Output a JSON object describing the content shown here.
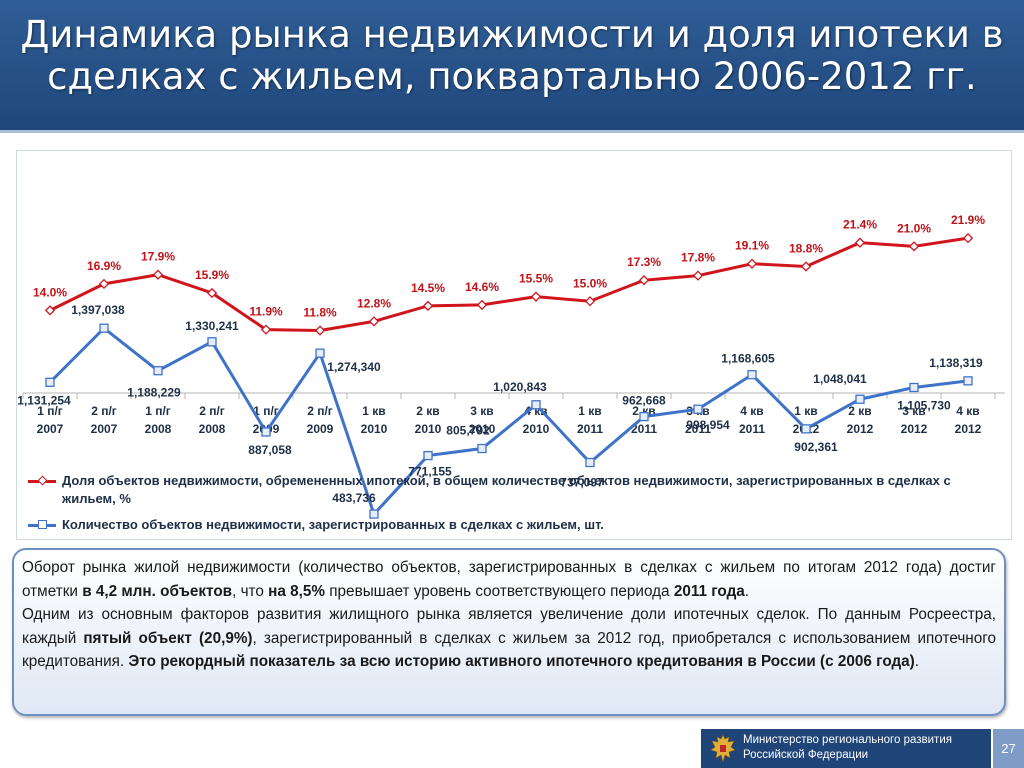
{
  "slide": {
    "title_line1": "Динамика рынка недвижимости и доля ипотеки в",
    "title_line2": "сделках с жильем, поквартально 2006-2012 гг."
  },
  "chart_data": {
    "type": "line",
    "categories": [
      [
        "1 п/г",
        "2007"
      ],
      [
        "2 п/г",
        "2007"
      ],
      [
        "1 п/г",
        "2008"
      ],
      [
        "2 п/г",
        "2008"
      ],
      [
        "1 п/г",
        "2009"
      ],
      [
        "2 п/г",
        "2009"
      ],
      [
        "1 кв",
        "2010"
      ],
      [
        "2 кв",
        "2010"
      ],
      [
        "3 кв",
        "2010"
      ],
      [
        "4 кв",
        "2010"
      ],
      [
        "1 кв",
        "2011"
      ],
      [
        "2 кв",
        "2011"
      ],
      [
        "3 кв",
        "2011"
      ],
      [
        "4 кв",
        "2011"
      ],
      [
        "1 кв",
        "2012"
      ],
      [
        "2 кв",
        "2012"
      ],
      [
        "3 кв",
        "2012"
      ],
      [
        "4 кв",
        "2012"
      ]
    ],
    "series": [
      {
        "name": "Доля объектов недвижимости, обремененных ипотекой, в общем количестве объектов недвижимости, зарегистрированных в сделках с жильем, %",
        "color": "#d0161c",
        "values": [
          14.0,
          16.9,
          17.9,
          15.9,
          11.9,
          11.8,
          12.8,
          14.5,
          14.6,
          15.5,
          15.0,
          17.3,
          17.8,
          19.1,
          18.8,
          21.4,
          21.0,
          21.9
        ],
        "labels": [
          "14.0%",
          "16.9%",
          "17.9%",
          "15.9%",
          "11.9%",
          "11.8%",
          "12.8%",
          "14.5%",
          "14.6%",
          "15.5%",
          "15.0%",
          "17.3%",
          "17.8%",
          "19.1%",
          "18.8%",
          "21.4%",
          "21.0%",
          "21.9%"
        ]
      },
      {
        "name": "Количество объектов недвижимости, зарегистрированных в сделках с жильем, шт.",
        "color": "#3f73c9",
        "values": [
          1131254,
          1397038,
          1188229,
          1330241,
          887058,
          1274340,
          483736,
          771155,
          805792,
          1020843,
          737097,
          962668,
          998954,
          1168605,
          902361,
          1048041,
          1105730,
          1138319
        ],
        "labels": [
          "1,131,254",
          "1,397,038",
          "1,188,229",
          "1,330,241",
          "887,058",
          "1,274,340",
          "483,736",
          "771,155",
          "805,792",
          "1,020,843",
          "737,097",
          "962,668",
          "998,954",
          "1,168,605",
          "902,361",
          "1,048,041",
          "1,105,730",
          "1,138,319"
        ]
      }
    ],
    "legend_position": "bottom",
    "grid": false
  },
  "legend": {
    "item1": "Доля объектов недвижимости, обремененных ипотекой, в общем количестве объектов недвижимости, зарегистрированных в сделках с жильем, %",
    "item2": "Количество объектов недвижимости, зарегистрированных в сделках с жильем, шт."
  },
  "text": {
    "p1_a": "Оборот рынка жилой недвижимости (количество объектов, зарегистрированных в сделках с жильем по итогам 2012 года) достиг отметки ",
    "p1_b": "в 4,2 млн. объектов",
    "p1_c": ", что ",
    "p1_d": "на 8,5%",
    "p1_e": " превышает уровень соответствующего периода ",
    "p1_f": "2011 года",
    "p1_g": ".",
    "p2_a": "Одним из основным факторов развития жилищного рынка является увеличение доли ипотечных сделок. По данным Росреестра, каждый ",
    "p2_b": "пятый объект (20,9%)",
    "p2_c": ", зарегистрированный в сделках с жильем за 2012 год, приобретался с использованием ипотечного кредитования. ",
    "p2_d": "Это рекордный показатель за всю историю активного ипотечного кредитования в России (с 2006 года)",
    "p2_e": "."
  },
  "footer": {
    "ministry_line1": "Министерство регионального развития",
    "ministry_line2": "Российской Федерации",
    "page_number": "27",
    "emblem_icon": "coat-of-arms-icon"
  }
}
